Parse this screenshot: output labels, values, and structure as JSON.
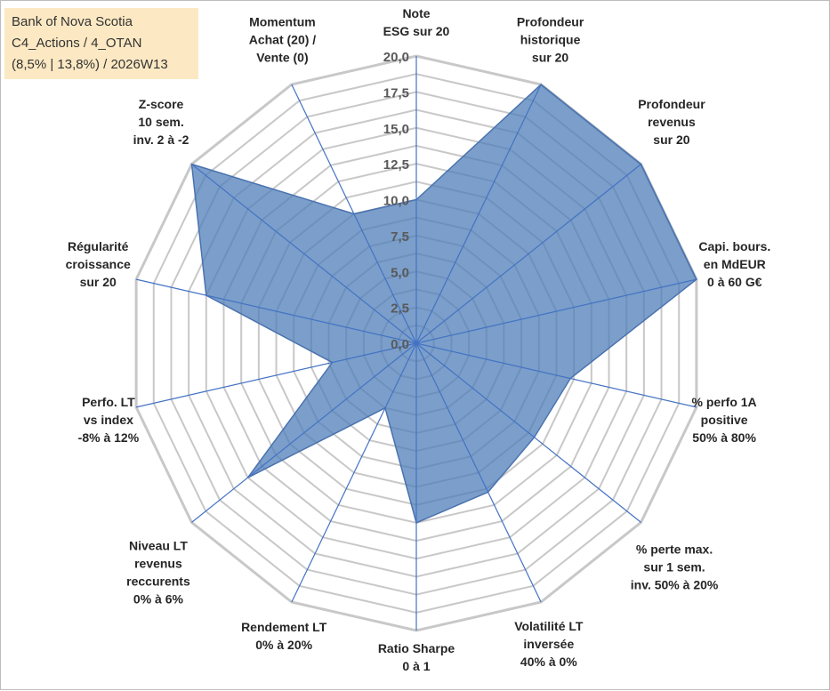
{
  "header": {
    "title_lines": [
      "Bank of Nova Scotia",
      "C4_Actions / 4_OTAN",
      "(8,5% | 13,8%) / 2026W13"
    ]
  },
  "colors": {
    "fill": "#4f7fb8",
    "stroke": "#4a72b0",
    "grid": "#c8c8c8",
    "spoke": "#4472c4",
    "title_bg": "#fce9c3"
  },
  "chart_data": {
    "type": "radar",
    "title": "Bank of Nova Scotia",
    "axis_min": 0,
    "axis_max": 20,
    "tick_step": 2.5,
    "ticks": [
      "0,0",
      "2,5",
      "5,0",
      "7,5",
      "10,0",
      "12,5",
      "15,0",
      "17,5",
      "20,0"
    ],
    "axes": [
      {
        "label": [
          "Note",
          "ESG sur 20"
        ],
        "value": 10
      },
      {
        "label": [
          "Profondeur",
          "historique",
          "sur 20"
        ],
        "value": 20
      },
      {
        "label": [
          "Profondeur",
          "revenus",
          "sur 20"
        ],
        "value": 20
      },
      {
        "label": [
          "Capi. bours.",
          "en MdEUR",
          "0 à 60 G€"
        ],
        "value": 20
      },
      {
        "label": [
          "% perfo 1A",
          "positive",
          "50% à 80%"
        ],
        "value": 11
      },
      {
        "label": [
          "% perte max.",
          "sur 1 sem.",
          "inv. 50% à 20%"
        ],
        "value": 10.5
      },
      {
        "label": [
          "Volatilité LT",
          "inversée",
          "40% à 0%"
        ],
        "value": 11.5
      },
      {
        "label": [
          "Ratio Sharpe",
          "0 à 1"
        ],
        "value": 12.5
      },
      {
        "label": [
          "Rendement LT",
          "0% à 20%"
        ],
        "value": 5
      },
      {
        "label": [
          "Niveau LT",
          "revenus",
          "reccurents",
          "0% à 6%"
        ],
        "value": 15
      },
      {
        "label": [
          "Perfo. LT",
          "vs index",
          "-8% à 12%"
        ],
        "value": 6
      },
      {
        "label": [
          "Régularité",
          "croissance",
          "sur 20"
        ],
        "value": 15
      },
      {
        "label": [
          "Z-score",
          "10 sem.",
          "inv. 2 à -2"
        ],
        "value": 20
      },
      {
        "label": [
          "Momentum",
          "Achat (20) /",
          "Vente (0)"
        ],
        "value": 10
      }
    ]
  }
}
